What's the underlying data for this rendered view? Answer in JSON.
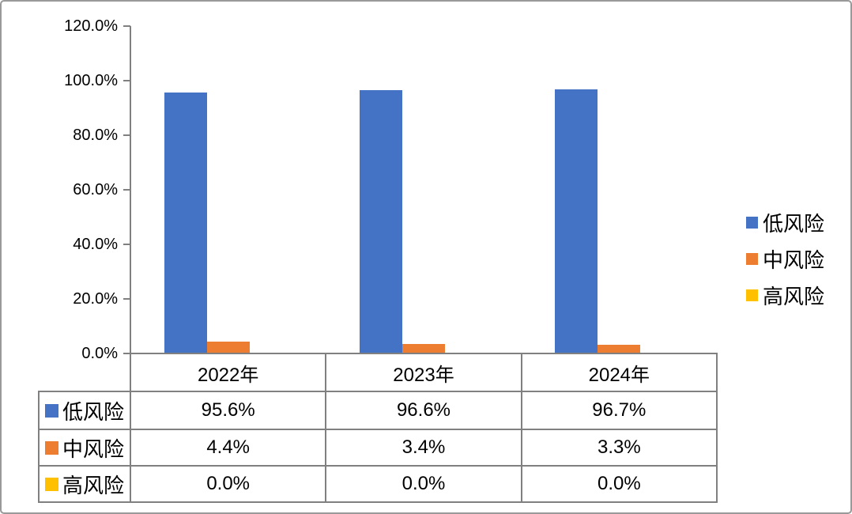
{
  "chart_data": {
    "type": "bar",
    "title": "",
    "categories": [
      "2022年",
      "2023年",
      "2024年"
    ],
    "series": [
      {
        "name": "低风险",
        "color": "#4472C4",
        "values": [
          95.6,
          96.6,
          96.7
        ]
      },
      {
        "name": "中风险",
        "color": "#ED7D31",
        "values": [
          4.4,
          3.4,
          3.3
        ]
      },
      {
        "name": "高风险",
        "color": "#FFC000",
        "values": [
          0.0,
          0.0,
          0.0
        ]
      }
    ],
    "y_axis": {
      "min": 0,
      "max": 120,
      "tick_step": 20,
      "tick_labels": [
        "120.0%",
        "100.0%",
        "80.0%",
        "60.0%",
        "40.0%",
        "20.0%",
        "0.0%"
      ]
    },
    "legend_position": "right",
    "grid": false,
    "data_table": {
      "column_headers": [
        "2022年",
        "2023年",
        "2024年"
      ],
      "rows": [
        {
          "label": "低风险",
          "values": [
            "95.6%",
            "96.6%",
            "96.7%"
          ]
        },
        {
          "label": "中风险",
          "values": [
            "4.4%",
            "3.4%",
            "3.3%"
          ]
        },
        {
          "label": "高风险",
          "values": [
            "0.0%",
            "0.0%",
            "0.0%"
          ]
        }
      ]
    }
  },
  "colors": {
    "series_blue": "#4472C4",
    "series_orange": "#ED7D31",
    "series_yellow": "#FFC000",
    "axis_line": "#808080",
    "table_border": "#808080",
    "outer_border": "#999999",
    "text": "#000000",
    "background": "#FFFFFF"
  }
}
